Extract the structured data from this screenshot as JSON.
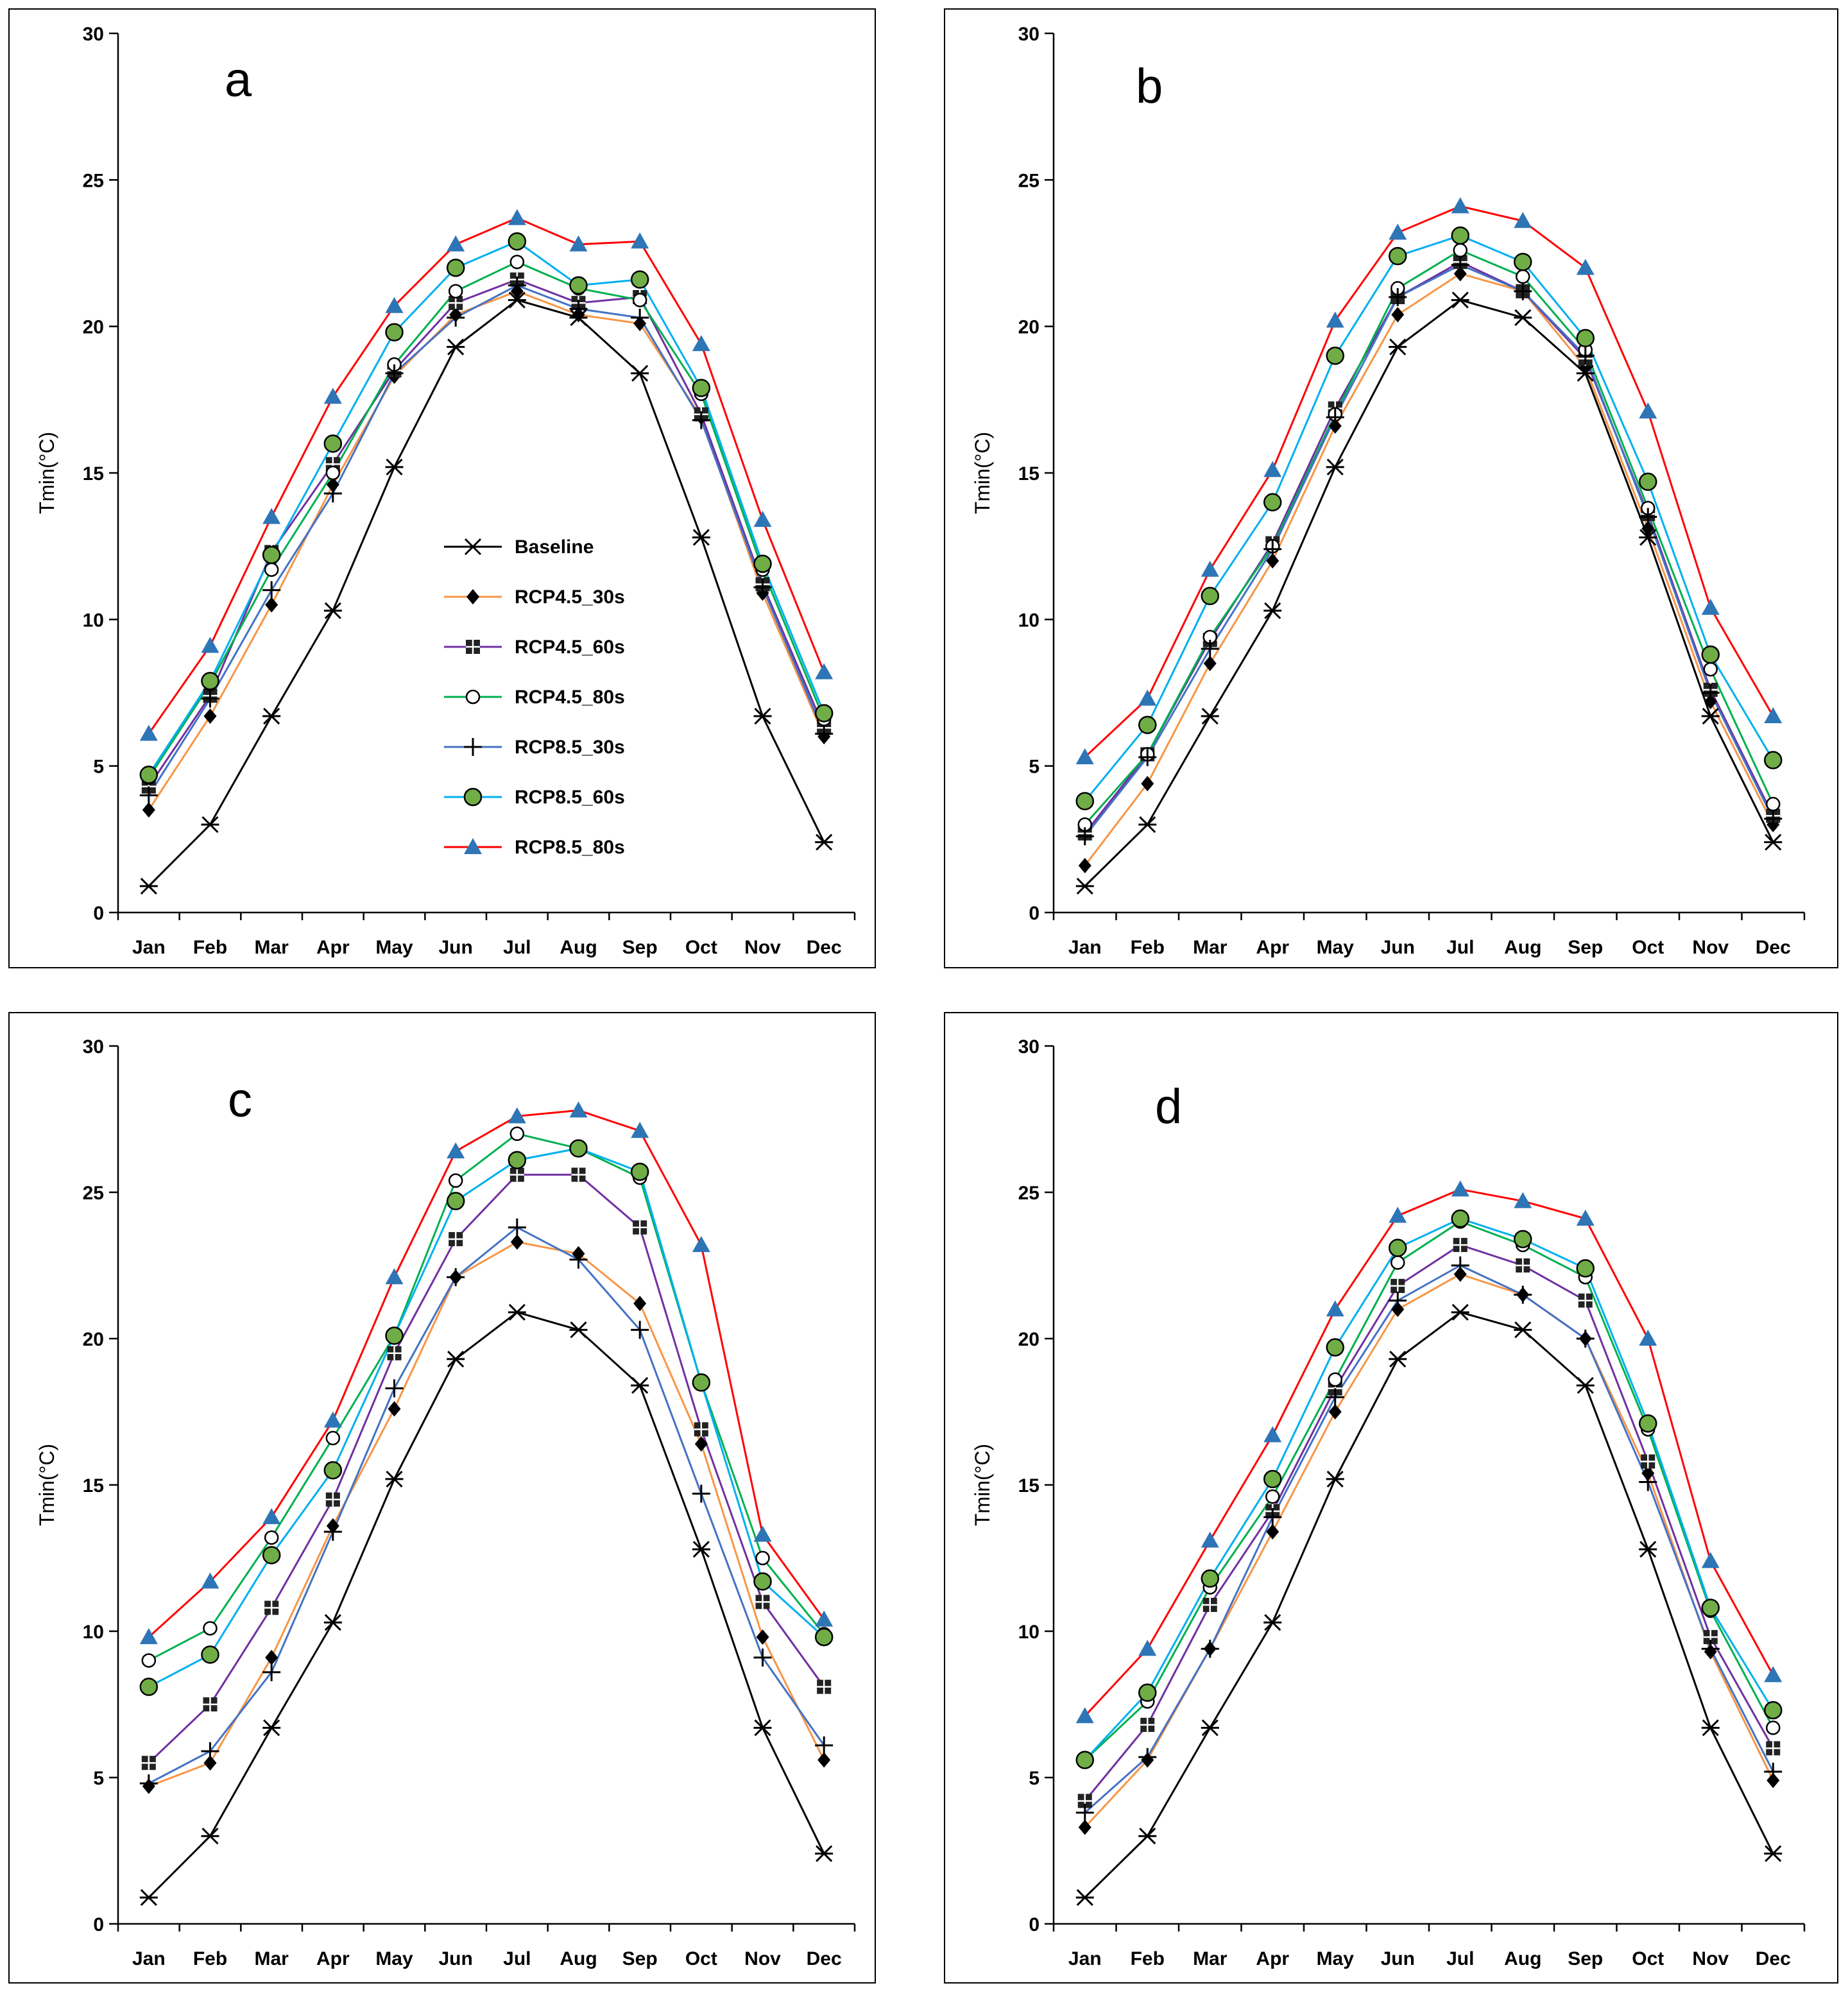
{
  "figure": {
    "ylabel": "Tmin(°C)",
    "legend": {
      "location": "center of panel a",
      "entries": [
        "Baseline",
        "RCP4.5_30s",
        "RCP4.5_60s",
        "RCP4.5_80s",
        "RCP8.5_30s",
        "RCP8.5_60s",
        "RCP8.5_80s"
      ]
    }
  },
  "chart_data": [
    {
      "type": "line",
      "title": "a",
      "xlabel": "",
      "ylabel": "Tmin(°C)",
      "ylim": [
        0,
        30
      ],
      "yticks": [
        "0",
        "5",
        "10",
        "15",
        "20",
        "25",
        "30"
      ],
      "categories": [
        "Jan",
        "Feb",
        "Mar",
        "Apr",
        "May",
        "Jun",
        "Jul",
        "Aug",
        "Sep",
        "Oct",
        "Nov",
        "Dec"
      ],
      "series": [
        {
          "name": "Baseline",
          "color": "#000000",
          "marker": "asterisk",
          "values": [
            0.9,
            3.0,
            6.7,
            10.3,
            15.2,
            19.3,
            20.9,
            20.3,
            18.4,
            12.8,
            6.7,
            2.4
          ]
        },
        {
          "name": "RCP4.5_30s",
          "color": "#f79646",
          "marker": "diamond",
          "values": [
            3.5,
            6.7,
            10.5,
            14.6,
            18.3,
            20.4,
            21.2,
            20.4,
            20.1,
            16.9,
            10.9,
            6.0
          ]
        },
        {
          "name": "RCP4.5_60s",
          "color": "#7030a0",
          "marker": "square-cross",
          "values": [
            4.3,
            7.4,
            12.3,
            15.3,
            18.5,
            20.8,
            21.6,
            20.8,
            21.0,
            17.0,
            11.2,
            6.3
          ]
        },
        {
          "name": "RCP4.5_80s",
          "color": "#00b050",
          "marker": "circle-open",
          "values": [
            4.6,
            7.8,
            11.7,
            15.0,
            18.7,
            21.2,
            22.2,
            21.3,
            20.9,
            17.7,
            11.7,
            6.6
          ]
        },
        {
          "name": "RCP8.5_30s",
          "color": "#4472c4",
          "marker": "plus",
          "values": [
            4.0,
            7.3,
            11.0,
            14.3,
            18.4,
            20.3,
            21.4,
            20.6,
            20.3,
            16.8,
            11.1,
            6.1
          ]
        },
        {
          "name": "RCP8.5_60s",
          "color": "#00b0f0",
          "marker": "circle-green",
          "values": [
            4.7,
            7.9,
            12.2,
            16.0,
            19.8,
            22.0,
            22.9,
            21.4,
            21.6,
            17.9,
            11.9,
            6.8
          ]
        },
        {
          "name": "RCP8.5_80s",
          "color": "#ff0000",
          "marker": "triangle",
          "values": [
            6.1,
            9.1,
            13.5,
            17.6,
            20.7,
            22.8,
            23.7,
            22.8,
            22.9,
            19.4,
            13.4,
            8.2
          ]
        }
      ]
    },
    {
      "type": "line",
      "title": "b",
      "xlabel": "",
      "ylabel": "Tmin(°C)",
      "ylim": [
        0,
        30
      ],
      "yticks": [
        "0",
        "5",
        "10",
        "15",
        "20",
        "25",
        "30"
      ],
      "categories": [
        "Jan",
        "Feb",
        "Mar",
        "Apr",
        "May",
        "Jun",
        "Jul",
        "Aug",
        "Sep",
        "Oct",
        "Nov",
        "Dec"
      ],
      "series": [
        {
          "name": "Baseline",
          "color": "#000000",
          "marker": "asterisk",
          "values": [
            0.9,
            3.0,
            6.7,
            10.3,
            15.2,
            19.3,
            20.9,
            20.3,
            18.4,
            12.8,
            6.7,
            2.4
          ]
        },
        {
          "name": "RCP4.5_30s",
          "color": "#f79646",
          "marker": "diamond",
          "values": [
            1.6,
            4.4,
            8.5,
            12.0,
            16.6,
            20.4,
            21.8,
            21.2,
            18.6,
            13.1,
            7.2,
            3.0
          ]
        },
        {
          "name": "RCP4.5_60s",
          "color": "#7030a0",
          "marker": "square-cross",
          "values": [
            2.7,
            5.4,
            9.3,
            12.6,
            17.2,
            21.0,
            22.2,
            21.2,
            18.9,
            13.6,
            7.6,
            3.3
          ]
        },
        {
          "name": "RCP4.5_80s",
          "color": "#00b050",
          "marker": "circle-open",
          "values": [
            3.0,
            5.4,
            9.4,
            12.5,
            17.0,
            21.3,
            22.6,
            21.7,
            19.2,
            13.8,
            8.3,
            3.7
          ]
        },
        {
          "name": "RCP8.5_30s",
          "color": "#4472c4",
          "marker": "plus",
          "values": [
            2.6,
            5.3,
            9.0,
            12.4,
            16.9,
            21.0,
            22.1,
            21.2,
            19.0,
            13.5,
            7.5,
            3.2
          ]
        },
        {
          "name": "RCP8.5_60s",
          "color": "#00b0f0",
          "marker": "circle-green",
          "values": [
            3.8,
            6.4,
            10.8,
            14.0,
            19.0,
            22.4,
            23.1,
            22.2,
            19.6,
            14.7,
            8.8,
            5.2
          ]
        },
        {
          "name": "RCP8.5_80s",
          "color": "#ff0000",
          "marker": "triangle",
          "values": [
            5.3,
            7.3,
            11.7,
            15.1,
            20.2,
            23.2,
            24.1,
            23.6,
            22.0,
            17.1,
            10.4,
            6.7
          ]
        }
      ]
    },
    {
      "type": "line",
      "title": "c",
      "xlabel": "",
      "ylabel": "Tmin(°C)",
      "ylim": [
        0,
        30
      ],
      "yticks": [
        "0",
        "5",
        "10",
        "15",
        "20",
        "25",
        "30"
      ],
      "categories": [
        "Jan",
        "Feb",
        "Mar",
        "Apr",
        "May",
        "Jun",
        "Jul",
        "Aug",
        "Sep",
        "Oct",
        "Nov",
        "Dec"
      ],
      "series": [
        {
          "name": "Baseline",
          "color": "#000000",
          "marker": "asterisk",
          "values": [
            0.9,
            3.0,
            6.7,
            10.3,
            15.2,
            19.3,
            20.9,
            20.3,
            18.4,
            12.8,
            6.7,
            2.4
          ]
        },
        {
          "name": "RCP4.5_30s",
          "color": "#f79646",
          "marker": "diamond",
          "values": [
            4.7,
            5.5,
            9.1,
            13.6,
            17.6,
            22.1,
            23.3,
            22.9,
            21.2,
            16.4,
            9.8,
            5.6
          ]
        },
        {
          "name": "RCP4.5_60s",
          "color": "#7030a0",
          "marker": "square-cross",
          "values": [
            5.5,
            7.5,
            10.8,
            14.5,
            19.5,
            23.4,
            25.6,
            25.6,
            23.8,
            16.9,
            11.0,
            8.1
          ]
        },
        {
          "name": "RCP4.5_80s",
          "color": "#00b050",
          "marker": "circle-open",
          "values": [
            9.0,
            10.1,
            13.2,
            16.6,
            20.1,
            25.4,
            27.0,
            26.5,
            25.5,
            18.5,
            12.5,
            9.9
          ]
        },
        {
          "name": "RCP8.5_30s",
          "color": "#4472c4",
          "marker": "plus",
          "values": [
            4.8,
            5.9,
            8.6,
            13.4,
            18.3,
            22.1,
            23.8,
            22.7,
            20.3,
            14.7,
            9.1,
            6.1
          ]
        },
        {
          "name": "RCP8.5_60s",
          "color": "#00b0f0",
          "marker": "circle-green",
          "values": [
            8.1,
            9.2,
            12.6,
            15.5,
            20.1,
            24.7,
            26.1,
            26.5,
            25.7,
            18.5,
            11.7,
            9.8
          ]
        },
        {
          "name": "RCP8.5_80s",
          "color": "#ff0000",
          "marker": "triangle",
          "values": [
            9.8,
            11.7,
            13.9,
            17.2,
            22.1,
            26.4,
            27.6,
            27.8,
            27.1,
            23.2,
            13.3,
            10.4
          ]
        }
      ]
    },
    {
      "type": "line",
      "title": "d",
      "xlabel": "",
      "ylabel": "Tmin(°C)",
      "ylim": [
        0,
        30
      ],
      "yticks": [
        "0",
        "5",
        "10",
        "15",
        "20",
        "25",
        "30"
      ],
      "categories": [
        "Jan",
        "Feb",
        "Mar",
        "Apr",
        "May",
        "Jun",
        "Jul",
        "Aug",
        "Sep",
        "Oct",
        "Nov",
        "Dec"
      ],
      "series": [
        {
          "name": "Baseline",
          "color": "#000000",
          "marker": "asterisk",
          "values": [
            0.9,
            3.0,
            6.7,
            10.3,
            15.2,
            19.3,
            20.9,
            20.3,
            18.4,
            12.8,
            6.7,
            2.4
          ]
        },
        {
          "name": "RCP4.5_30s",
          "color": "#f79646",
          "marker": "diamond",
          "values": [
            3.3,
            5.6,
            9.4,
            13.4,
            17.5,
            21.0,
            22.2,
            21.5,
            20.0,
            15.4,
            9.3,
            4.9
          ]
        },
        {
          "name": "RCP4.5_60s",
          "color": "#7030a0",
          "marker": "square-cross",
          "values": [
            4.2,
            6.8,
            10.9,
            14.1,
            18.3,
            21.8,
            23.2,
            22.5,
            21.3,
            15.8,
            9.8,
            6.0
          ]
        },
        {
          "name": "RCP4.5_80s",
          "color": "#00b050",
          "marker": "circle-open",
          "values": [
            5.6,
            7.6,
            11.5,
            14.6,
            18.6,
            22.6,
            24.0,
            23.2,
            22.1,
            16.9,
            10.7,
            6.7
          ]
        },
        {
          "name": "RCP8.5_30s",
          "color": "#4472c4",
          "marker": "plus",
          "values": [
            3.8,
            5.7,
            9.4,
            13.9,
            18.0,
            21.3,
            22.5,
            21.5,
            20.0,
            15.1,
            9.4,
            5.2
          ]
        },
        {
          "name": "RCP8.5_60s",
          "color": "#00b0f0",
          "marker": "circle-green",
          "values": [
            5.6,
            7.9,
            11.8,
            15.2,
            19.7,
            23.1,
            24.1,
            23.4,
            22.4,
            17.1,
            10.8,
            7.3
          ]
        },
        {
          "name": "RCP8.5_80s",
          "color": "#ff0000",
          "marker": "triangle",
          "values": [
            7.1,
            9.4,
            13.1,
            16.7,
            21.0,
            24.2,
            25.1,
            24.7,
            24.1,
            20.0,
            12.4,
            8.5
          ]
        }
      ]
    }
  ]
}
